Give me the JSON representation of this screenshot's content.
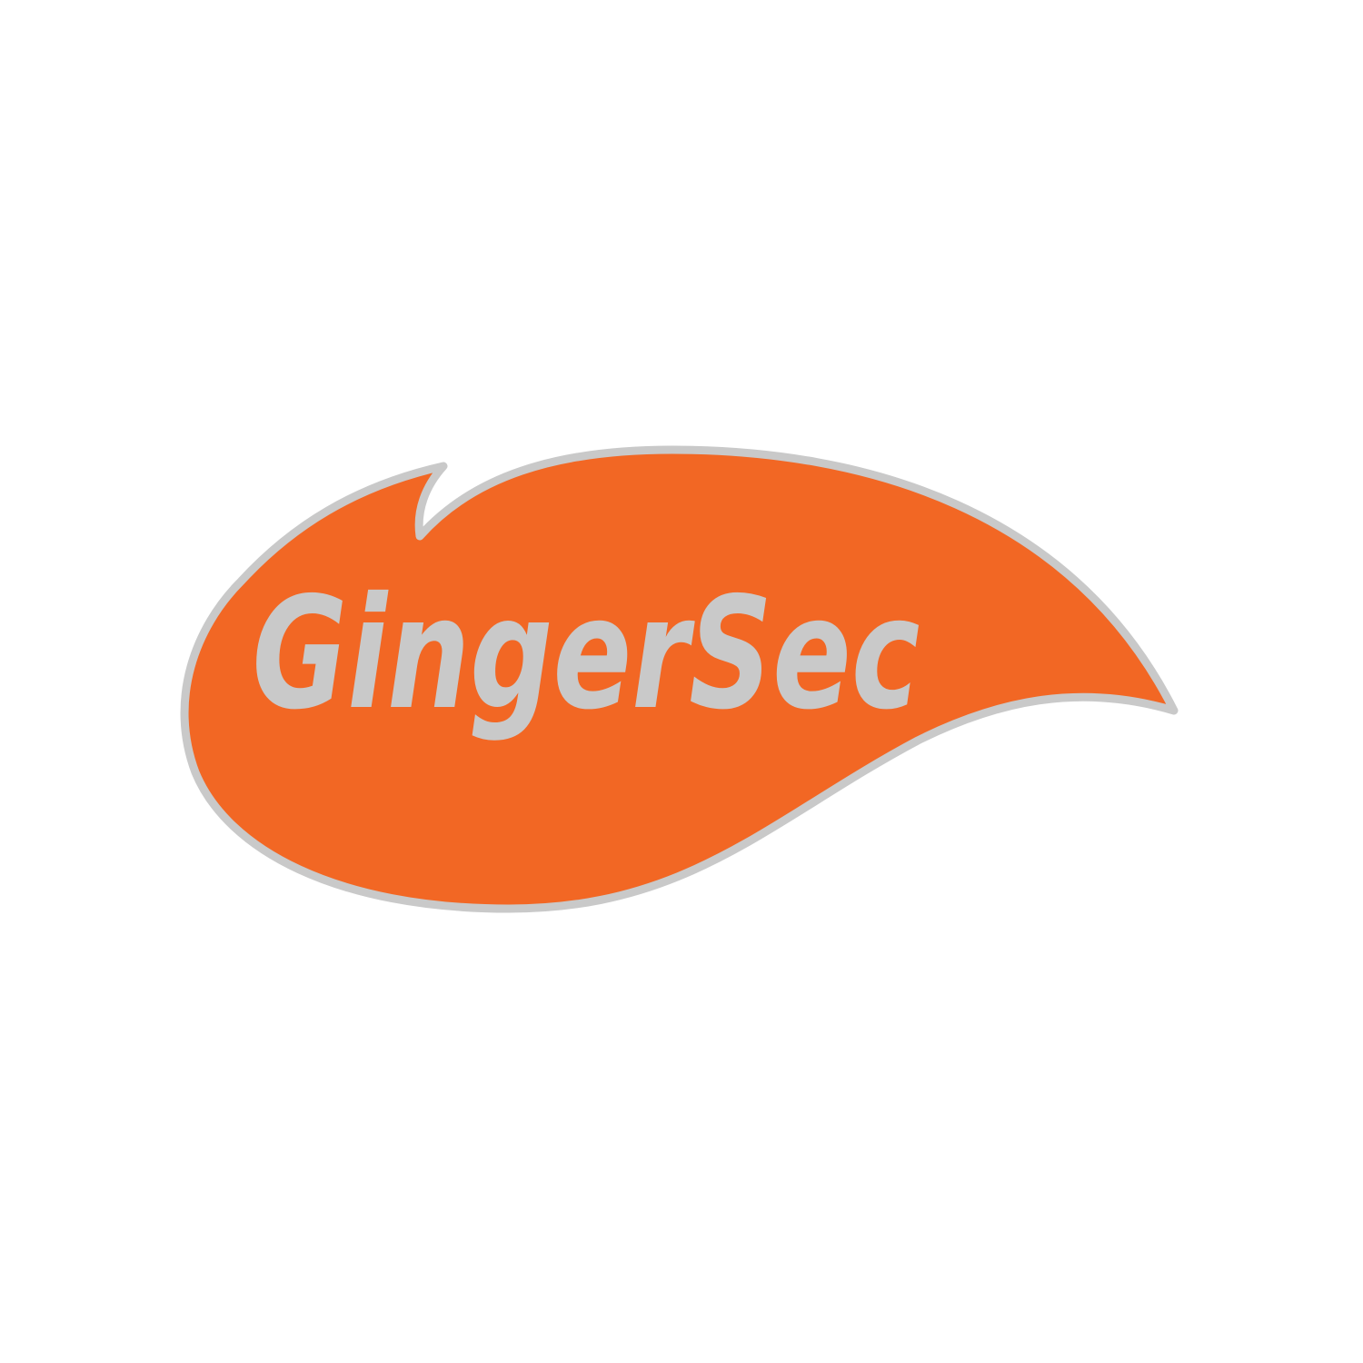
{
  "logo": {
    "wordmark": "GingerSec",
    "colors": {
      "background": "#ffffff",
      "flame_fill": "#f26724",
      "outline": "#c9c9c9",
      "wordmark": "#c9c9c9"
    }
  }
}
